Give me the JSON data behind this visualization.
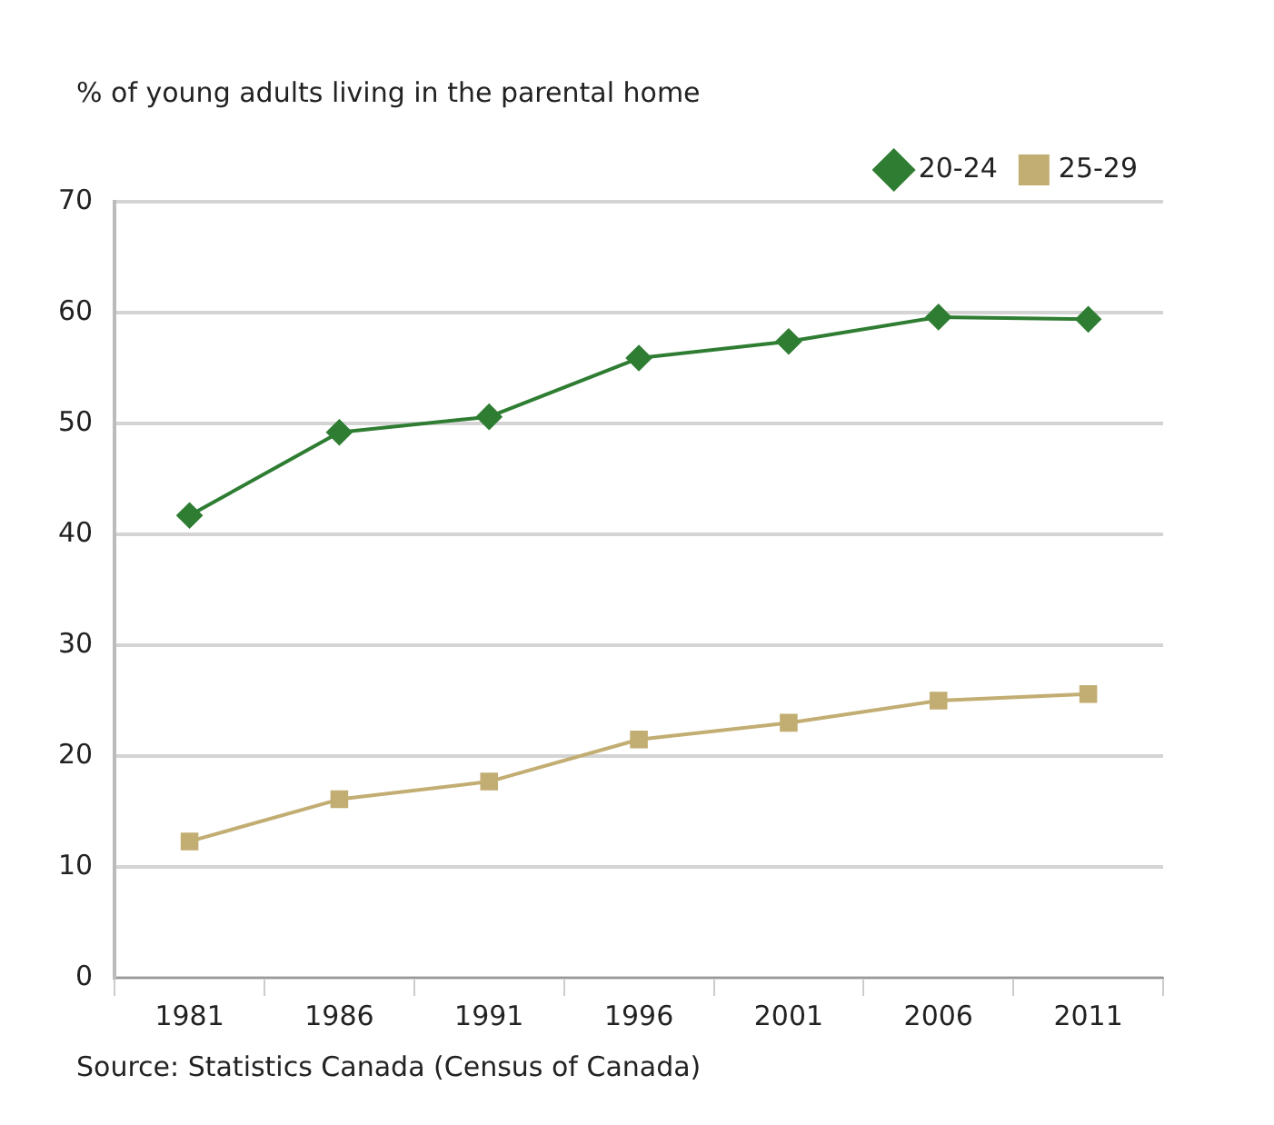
{
  "chart_data": {
    "type": "line",
    "ylabel": "% of young adults living in the parental home",
    "categories": [
      "1981",
      "1986",
      "1991",
      "1996",
      "2001",
      "2006",
      "2011"
    ],
    "series": [
      {
        "name": "20-24",
        "color": "#2e7d32",
        "marker": "diamond",
        "values": [
          41.7,
          49.2,
          50.6,
          55.9,
          57.4,
          59.6,
          59.4
        ]
      },
      {
        "name": "25-29",
        "color": "#c2ad72",
        "marker": "square",
        "values": [
          12.3,
          16.1,
          17.7,
          21.5,
          23.0,
          25.0,
          25.6
        ]
      }
    ],
    "ylim": [
      0,
      70
    ],
    "yticks": [
      0,
      10,
      20,
      30,
      40,
      50,
      60,
      70
    ],
    "grid": "y",
    "legend": "top right",
    "annotations": [
      "Source: Statistics Canada (Census of Canada)"
    ]
  }
}
